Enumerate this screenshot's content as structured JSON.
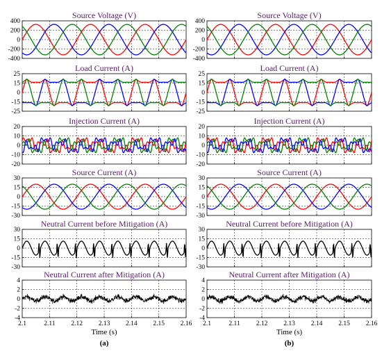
{
  "chart_data": [
    {
      "panel": "a",
      "panel_label": "(a)",
      "xlabel": "Time (s)",
      "xlim": [
        2.1,
        2.16
      ],
      "xticks": [
        "2.1",
        "2.11",
        "2.12",
        "2.13",
        "2.14",
        "2.15",
        "2.16"
      ],
      "subplots": [
        {
          "type": "line",
          "title": "Source Voltage (V)",
          "ylim": [
            -400,
            400
          ],
          "yticks": [
            "400",
            "200",
            "0",
            "-200",
            "-400"
          ],
          "grid": true,
          "series": [
            {
              "color": "#ff0000",
              "amplitude": 325,
              "frequency_hz": 50,
              "phase_deg": 0
            },
            {
              "color": "#0000ff",
              "amplitude": 325,
              "frequency_hz": 50,
              "phase_deg": -120
            },
            {
              "color": "#008000",
              "amplitude": 325,
              "frequency_hz": 50,
              "phase_deg": 120
            }
          ]
        },
        {
          "type": "line",
          "title": "Load Current (A)",
          "ylim": [
            -25,
            25
          ],
          "yticks": [
            "25",
            "15",
            "0",
            "-15",
            "-25"
          ],
          "grid": true,
          "series": [
            {
              "color": "#ff0000",
              "amplitude": 18,
              "frequency_hz": 50,
              "phase_deg": 0
            },
            {
              "color": "#0000ff",
              "amplitude": 18,
              "frequency_hz": 50,
              "phase_deg": -120
            },
            {
              "color": "#008000",
              "amplitude": 18,
              "frequency_hz": 50,
              "phase_deg": 120
            }
          ]
        },
        {
          "type": "line",
          "title": "Injection Current (A)",
          "ylim": [
            -20,
            20
          ],
          "yticks": [
            "20",
            "10",
            "0",
            "-10",
            "-20"
          ],
          "grid": true,
          "series": [
            {
              "color": "#ff0000",
              "amplitude": 10,
              "frequency_hz": 50,
              "phase_deg": 0
            },
            {
              "color": "#008000",
              "amplitude": 10,
              "frequency_hz": 50,
              "phase_deg": 120
            },
            {
              "color": "#0000ff",
              "amplitude": 10,
              "frequency_hz": 50,
              "phase_deg": -120
            }
          ]
        },
        {
          "type": "line",
          "title": "Source Current (A)",
          "ylim": [
            -30,
            30
          ],
          "yticks": [
            "30",
            "15",
            "0",
            "-15",
            "-30"
          ],
          "grid": true,
          "series": [
            {
              "color": "#ff0000",
              "amplitude": 20,
              "frequency_hz": 50,
              "phase_deg": 0
            },
            {
              "color": "#0000ff",
              "amplitude": 20,
              "frequency_hz": 50,
              "phase_deg": -120
            },
            {
              "color": "#008000",
              "amplitude": 20,
              "frequency_hz": 50,
              "phase_deg": 120
            }
          ]
        },
        {
          "type": "line",
          "title": "Neutral Current before Mitigation (A)",
          "ylim": [
            -30,
            30
          ],
          "yticks": [
            "30",
            "15",
            "0",
            "-15",
            "-30"
          ],
          "grid": true,
          "series": [
            {
              "color": "#000000",
              "amplitude": 15,
              "frequency_hz": 150,
              "phase_deg": 0
            }
          ]
        },
        {
          "type": "line",
          "title": "Neutral Current after Mitigation (A)",
          "ylim": [
            -4,
            4
          ],
          "yticks": [
            "4",
            "2",
            "0",
            "-2",
            "-4"
          ],
          "grid": true,
          "series": [
            {
              "color": "#000000",
              "amplitude": 1.5,
              "frequency_hz": 150,
              "phase_deg": 0
            }
          ]
        }
      ]
    },
    {
      "panel": "b",
      "panel_label": "(b)",
      "xlabel": "Time (s)",
      "xlim": [
        2.1,
        2.16
      ],
      "xticks": [
        "2.1",
        "2.11",
        "2.12",
        "2.13",
        "2.14",
        "2.15",
        "2.16"
      ],
      "subplots": [
        {
          "type": "line",
          "title": "Source Voltage (V)",
          "ylim": [
            -400,
            400
          ],
          "yticks": [
            "400",
            "200",
            "0",
            "-200",
            "-400"
          ],
          "grid": true,
          "series": [
            {
              "color": "#ff0000",
              "amplitude": 325,
              "frequency_hz": 50,
              "phase_deg": 0
            },
            {
              "color": "#0000ff",
              "amplitude": 325,
              "frequency_hz": 50,
              "phase_deg": -120
            },
            {
              "color": "#008000",
              "amplitude": 325,
              "frequency_hz": 50,
              "phase_deg": 120
            }
          ]
        },
        {
          "type": "line",
          "title": "Load Current (A)",
          "ylim": [
            -25,
            25
          ],
          "yticks": [
            "25",
            "15",
            "0",
            "-15",
            "-25"
          ],
          "grid": true,
          "series": [
            {
              "color": "#ff0000",
              "amplitude": 18,
              "frequency_hz": 50,
              "phase_deg": 0
            },
            {
              "color": "#0000ff",
              "amplitude": 18,
              "frequency_hz": 50,
              "phase_deg": -120
            },
            {
              "color": "#008000",
              "amplitude": 18,
              "frequency_hz": 50,
              "phase_deg": 120
            }
          ]
        },
        {
          "type": "line",
          "title": "Injection Current (A)",
          "ylim": [
            -20,
            20
          ],
          "yticks": [
            "20",
            "10",
            "0",
            "-10",
            "-20"
          ],
          "grid": true,
          "series": [
            {
              "color": "#ff0000",
              "amplitude": 10,
              "frequency_hz": 50,
              "phase_deg": 0
            },
            {
              "color": "#008000",
              "amplitude": 10,
              "frequency_hz": 50,
              "phase_deg": 120
            },
            {
              "color": "#0000ff",
              "amplitude": 10,
              "frequency_hz": 50,
              "phase_deg": -120
            }
          ]
        },
        {
          "type": "line",
          "title": "Source Current (A)",
          "ylim": [
            -30,
            30
          ],
          "yticks": [
            "30",
            "15",
            "0",
            "-15",
            "-30"
          ],
          "grid": true,
          "series": [
            {
              "color": "#ff0000",
              "amplitude": 20,
              "frequency_hz": 50,
              "phase_deg": 0
            },
            {
              "color": "#0000ff",
              "amplitude": 20,
              "frequency_hz": 50,
              "phase_deg": -120
            },
            {
              "color": "#008000",
              "amplitude": 20,
              "frequency_hz": 50,
              "phase_deg": 120
            }
          ]
        },
        {
          "type": "line",
          "title": "Neutral Current before Mitigation (A)",
          "ylim": [
            -30,
            30
          ],
          "yticks": [
            "30",
            "15",
            "0",
            "-15",
            "-30"
          ],
          "grid": true,
          "series": [
            {
              "color": "#000000",
              "amplitude": 15,
              "frequency_hz": 150,
              "phase_deg": 0
            }
          ]
        },
        {
          "type": "line",
          "title": "Neutral Current after Mitigation (A)",
          "ylim": [
            -4,
            4
          ],
          "yticks": [
            "4",
            "2",
            "0",
            "-2",
            "-4"
          ],
          "grid": true,
          "series": [
            {
              "color": "#000000",
              "amplitude": 1.5,
              "frequency_hz": 150,
              "phase_deg": 0
            }
          ]
        }
      ]
    }
  ]
}
